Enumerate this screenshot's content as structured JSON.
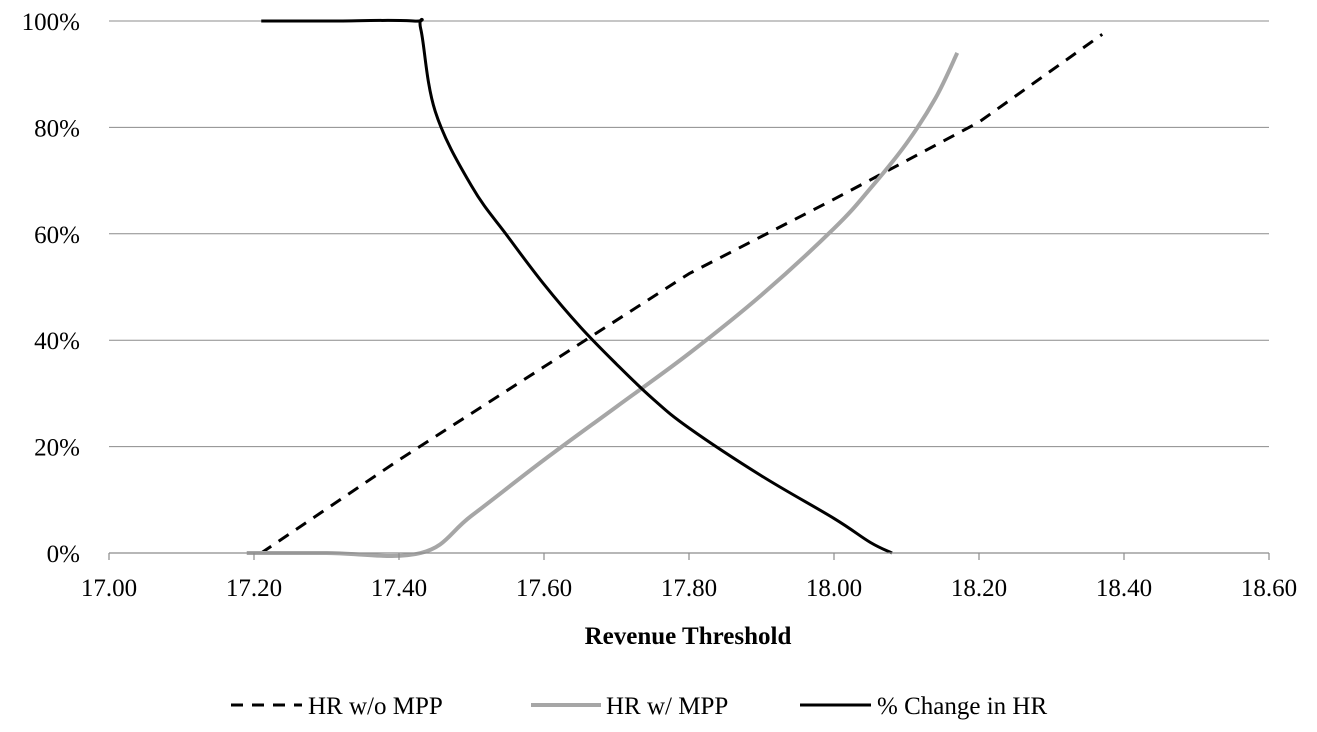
{
  "chart_data": {
    "type": "line",
    "title": "",
    "xlabel": "Revenue Threshold",
    "ylabel": "",
    "xlim": [
      17.0,
      18.6
    ],
    "ylim": [
      0,
      100
    ],
    "x_ticks": [
      17.0,
      17.2,
      17.4,
      17.6,
      17.8,
      18.0,
      18.2,
      18.4,
      18.6
    ],
    "x_tick_labels": [
      "17.00",
      "17.20",
      "17.40",
      "17.60",
      "17.80",
      "18.00",
      "18.20",
      "18.40",
      "18.60"
    ],
    "y_ticks": [
      0,
      20,
      40,
      60,
      80,
      100
    ],
    "y_tick_labels": [
      "0%",
      "20%",
      "40%",
      "60%",
      "80%",
      "100%"
    ],
    "grid": "horizontal",
    "legend_position": "bottom",
    "series": [
      {
        "name": "HR w/o MPP",
        "color": "#000000",
        "style": "dashed",
        "x": [
          17.21,
          17.4,
          17.6,
          17.8,
          18.0,
          18.2,
          18.37
        ],
        "y": [
          0,
          17.5,
          35.0,
          52.5,
          66.5,
          81.0,
          97.5
        ]
      },
      {
        "name": "HR w/ MPP",
        "color": "#a6a6a6",
        "style": "solid",
        "x": [
          17.19,
          17.3,
          17.43,
          17.5,
          17.6,
          17.7,
          17.8,
          17.9,
          18.0,
          18.05,
          18.1,
          18.14,
          18.17
        ],
        "y": [
          0,
          0,
          0,
          7,
          17.5,
          27.5,
          37.5,
          48.5,
          61,
          68.5,
          77,
          85.5,
          94
        ]
      },
      {
        "name": "% Change in HR",
        "color": "#000000",
        "style": "solid",
        "x": [
          17.21,
          17.3,
          17.42,
          17.43,
          17.45,
          17.5,
          17.55,
          17.6,
          17.65,
          17.7,
          17.75,
          17.8,
          17.9,
          18.0,
          18.05,
          18.08
        ],
        "y": [
          100,
          100,
          100,
          98.5,
          83,
          69,
          59.5,
          50.5,
          42.5,
          35.5,
          29,
          23.5,
          14.5,
          6.5,
          2,
          0
        ]
      }
    ]
  }
}
